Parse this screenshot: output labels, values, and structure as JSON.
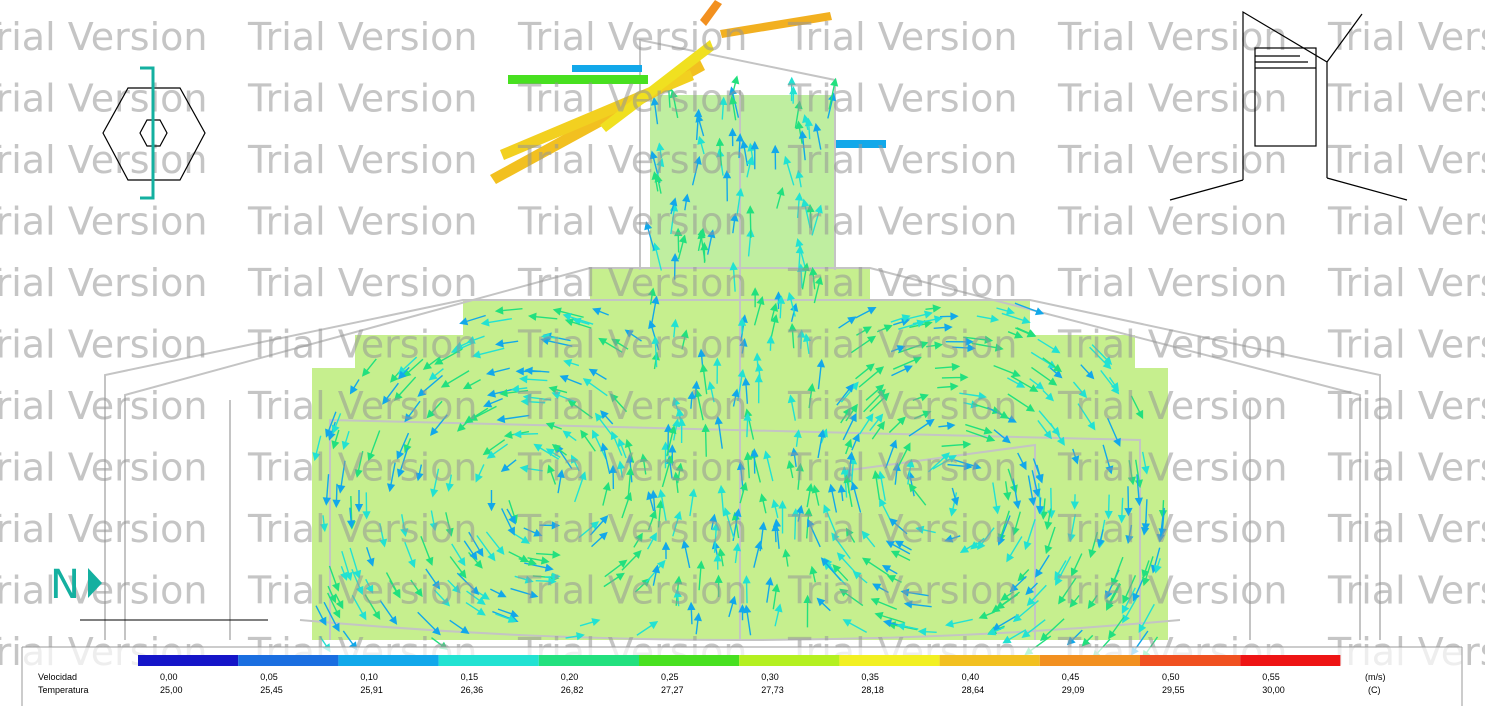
{
  "watermark": "Trial Version",
  "north": "N",
  "legend": {
    "velocity_label": "Velocidad",
    "temperature_label": "Temperatura",
    "velocity_unit": "(m/s)",
    "temperature_unit": "(C)",
    "velocity_values": [
      "0,00",
      "0,05",
      "0,10",
      "0,15",
      "0,20",
      "0,25",
      "0,30",
      "0,35",
      "0,40",
      "0,45",
      "0,50",
      "0,55"
    ],
    "temperature_values": [
      "25,00",
      "25,45",
      "25,91",
      "26,36",
      "26,82",
      "27,27",
      "27,73",
      "28,18",
      "28,64",
      "29,09",
      "29,55",
      "30,00"
    ],
    "colors": [
      "#1515c8",
      "#1a6ee0",
      "#12a8ea",
      "#22e2d2",
      "#22e07e",
      "#48e020",
      "#b4f020",
      "#f2f022",
      "#f2c020",
      "#f29020",
      "#f05020",
      "#ee1414"
    ]
  }
}
